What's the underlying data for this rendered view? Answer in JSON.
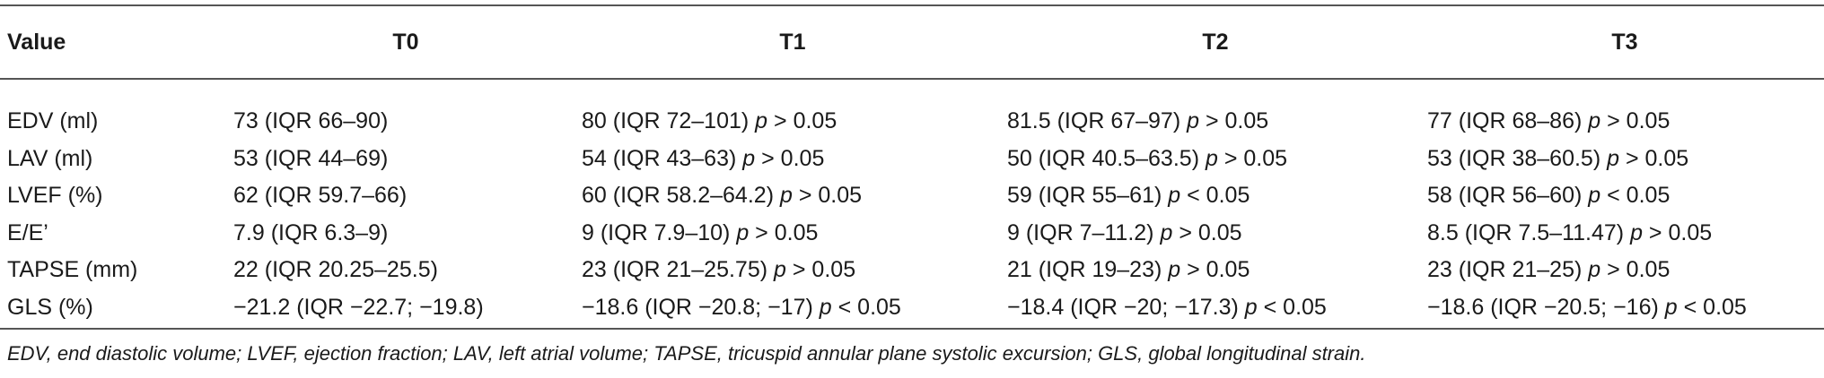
{
  "table": {
    "headers": [
      "Value",
      "T0",
      "T1",
      "T2",
      "T3"
    ],
    "rows": [
      {
        "label": "EDV (ml)",
        "t0": "73 (IQR 66–90)",
        "t1": {
          "value": "80 (IQR 72–101)",
          "p": "p",
          "cmp": "> 0.05"
        },
        "t2": {
          "value": "81.5 (IQR 67–97)",
          "p": "p",
          "cmp": "> 0.05"
        },
        "t3": {
          "value": "77 (IQR 68–86)",
          "p": "p",
          "cmp": "> 0.05"
        }
      },
      {
        "label": "LAV (ml)",
        "t0": "53 (IQR 44–69)",
        "t1": {
          "value": "54 (IQR 43–63)",
          "p": "p",
          "cmp": "> 0.05"
        },
        "t2": {
          "value": "50 (IQR 40.5–63.5)",
          "p": "p",
          "cmp": "> 0.05"
        },
        "t3": {
          "value": "53 (IQR 38–60.5)",
          "p": "p",
          "cmp": "> 0.05"
        }
      },
      {
        "label": "LVEF (%)",
        "t0": "62 (IQR 59.7–66)",
        "t1": {
          "value": "60 (IQR 58.2–64.2)",
          "p": "p",
          "cmp": "> 0.05"
        },
        "t2": {
          "value": "59 (IQR 55–61)",
          "p": "p",
          "cmp": "< 0.05"
        },
        "t3": {
          "value": "58 (IQR 56–60)",
          "p": "p",
          "cmp": "< 0.05"
        }
      },
      {
        "label": "E/E’",
        "t0": "7.9 (IQR 6.3–9)",
        "t1": {
          "value": "9 (IQR 7.9–10)",
          "p": "p",
          "cmp": "> 0.05"
        },
        "t2": {
          "value": "9 (IQR 7–11.2)",
          "p": "p",
          "cmp": "> 0.05"
        },
        "t3": {
          "value": "8.5 (IQR 7.5–11.47)",
          "p": "p",
          "cmp": "> 0.05"
        }
      },
      {
        "label": "TAPSE (mm)",
        "t0": "22 (IQR 20.25–25.5)",
        "t1": {
          "value": "23 (IQR 21–25.75)",
          "p": "p",
          "cmp": "> 0.05"
        },
        "t2": {
          "value": "21 (IQR 19–23)",
          "p": "p",
          "cmp": "> 0.05"
        },
        "t3": {
          "value": "23 (IQR 21–25)",
          "p": "p",
          "cmp": "> 0.05"
        }
      },
      {
        "label": "GLS (%)",
        "t0": "−21.2 (IQR −22.7; −19.8)",
        "t1": {
          "value": "−18.6 (IQR −20.8; −17)",
          "p": "p",
          "cmp": "< 0.05"
        },
        "t2": {
          "value": "−18.4 (IQR −20; −17.3)",
          "p": "p",
          "cmp": "< 0.05"
        },
        "t3": {
          "value": "−18.6 (IQR −20.5; −16)",
          "p": "p",
          "cmp": "< 0.05"
        }
      }
    ]
  },
  "footnote": "EDV, end diastolic volume; LVEF, ejection fraction; LAV, left atrial volume; TAPSE, tricuspid annular plane systolic excursion; GLS, global longitudinal strain."
}
